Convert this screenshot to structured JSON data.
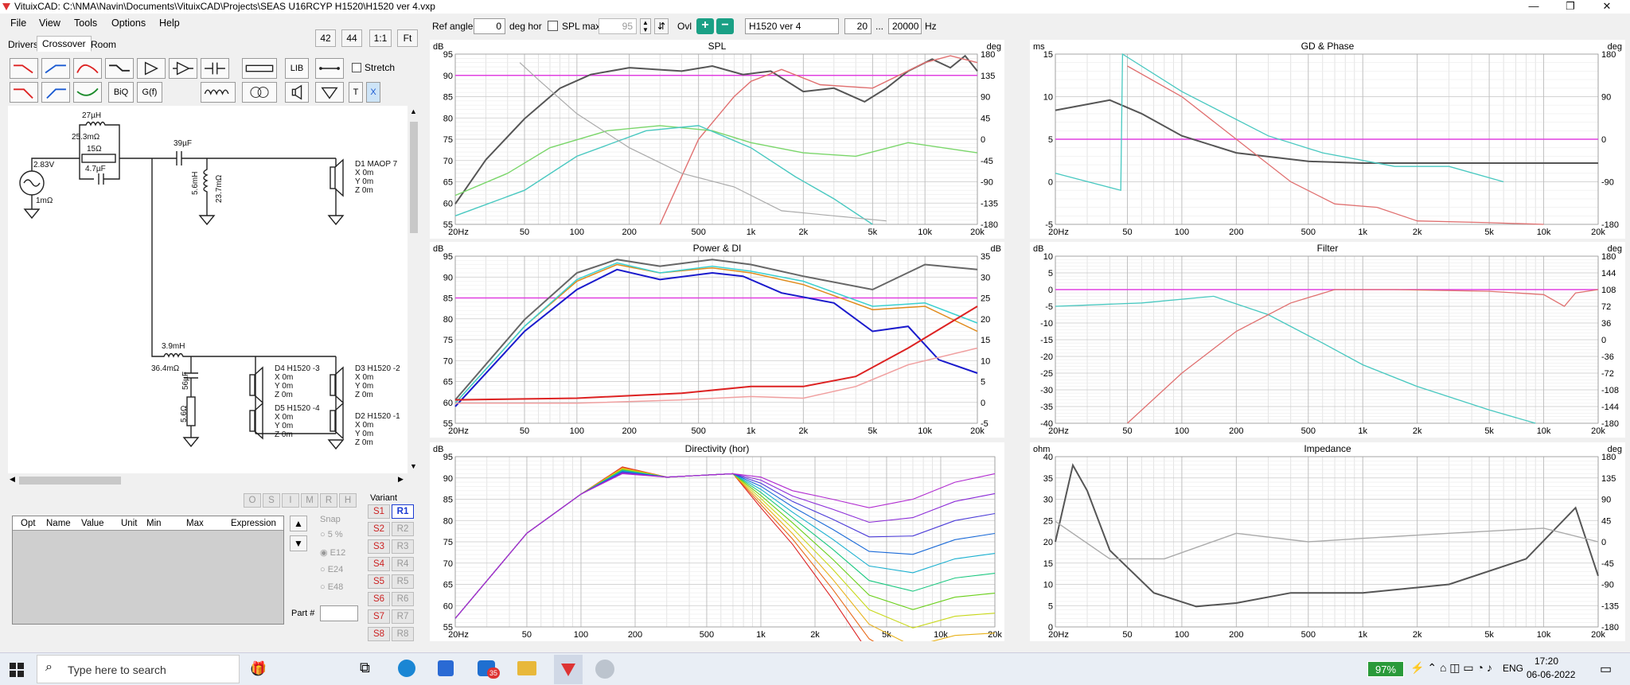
{
  "window": {
    "title": "VituixCAD: C:\\NMA\\Navin\\Documents\\VituixCAD\\Projects\\SEAS U16RCYP H1520\\H1520 ver 4.vxp",
    "controls": [
      "—",
      "❐",
      "✕"
    ]
  },
  "menu": [
    "File",
    "View",
    "Tools",
    "Options",
    "Help"
  ],
  "tabs": [
    "Drivers",
    "Crossover",
    "Room"
  ],
  "zoom_buttons": [
    "42",
    "44",
    "1:1",
    "Ft"
  ],
  "tools": {
    "lib": "LIB",
    "biq": "BiQ",
    "gf": "G(f)",
    "t": "T",
    "x": "X",
    "stretch": "Stretch"
  },
  "topbar": {
    "ref_angle_label": "Ref angle",
    "ref_angle_value": "0",
    "deg_hor": "deg hor",
    "spl_max_label": "SPL max",
    "spl_max_value": "95",
    "ovl_label": "Ovl",
    "overlay_name": "H1520 ver 4",
    "freq_from": "20",
    "freq_sep": "...",
    "freq_to": "20000",
    "hz": "Hz"
  },
  "schematic": {
    "labels": {
      "l1": "27µH",
      "r_l1": "25.3mΩ",
      "r1": "15Ω",
      "c1": "4.7µF",
      "src_v": "2.83V",
      "src_r": "1mΩ",
      "c2": "39µF",
      "l2": "5.6mH",
      "r_l2": "23.7mΩ",
      "d1": "D1 MAOP 7",
      "d1x": "X 0m",
      "d1y": "Y 0m",
      "d1z": "Z 0m",
      "l3": "3.9mH",
      "r_l3": "36.4mΩ",
      "c3": "56µF",
      "r3": "5.6Ω",
      "d4": "D4 H1520 -3",
      "d4x": "X 0m",
      "d4y": "Y 0m",
      "d4z": "Z 0m",
      "d3": "D3 H1520 -2",
      "d3x": "X 0m",
      "d3y": "Y 0m",
      "d3z": "Z 0m",
      "d5": "D5 H1520 -4",
      "d5x": "X 0m",
      "d5y": "Y 0m",
      "d5z": "Z 0m",
      "d2": "D2 H1520 -1",
      "d2x": "X 0m",
      "d2y": "Y 0m",
      "d2z": "Z 0m"
    }
  },
  "optimizer": {
    "mini_buttons": [
      "O",
      "S",
      "I",
      "M",
      "R",
      "H"
    ],
    "columns": [
      "Opt",
      "Name",
      "Value",
      "Unit",
      "Min",
      "Max",
      "Expression"
    ],
    "snap_label": "Snap",
    "snap_options": [
      "5 %",
      "E12",
      "E24",
      "E48"
    ],
    "snap_selected": "E12",
    "part_label": "Part #"
  },
  "variant": {
    "label": "Variant",
    "s": [
      "S1",
      "S2",
      "S3",
      "S4",
      "S5",
      "S6",
      "S7",
      "S8"
    ],
    "r": [
      "R1",
      "R2",
      "R3",
      "R4",
      "R5",
      "R6",
      "R7",
      "R8"
    ],
    "selected": "R1"
  },
  "x_ticks": [
    "20Hz",
    "50",
    "100",
    "200",
    "500",
    "1k",
    "2k",
    "5k",
    "10k",
    "20k"
  ],
  "panels": {
    "spl": {
      "title": "SPL",
      "unit_l": "dB",
      "unit_r": "deg",
      "yl": [
        "95",
        "90",
        "85",
        "80",
        "75",
        "70",
        "65",
        "60",
        "55"
      ],
      "yr": [
        "180",
        "135",
        "90",
        "45",
        "0",
        "-45",
        "-90",
        "-135",
        "-180"
      ]
    },
    "gd": {
      "title": "GD & Phase",
      "unit_l": "ms",
      "unit_r": "deg",
      "yl": [
        "15",
        "10",
        "5",
        "0",
        "-5"
      ],
      "yr": [
        "180",
        "90",
        "0",
        "-90",
        "-180"
      ]
    },
    "power": {
      "title": "Power & DI",
      "unit_l": "dB",
      "unit_r": "dB",
      "yl": [
        "95",
        "90",
        "85",
        "80",
        "75",
        "70",
        "65",
        "60",
        "55"
      ],
      "yr": [
        "35",
        "30",
        "25",
        "20",
        "15",
        "10",
        "5",
        "0",
        "-5"
      ]
    },
    "filter": {
      "title": "Filter",
      "unit_l": "dB",
      "unit_r": "deg",
      "yl": [
        "10",
        "5",
        "0",
        "-5",
        "-10",
        "-15",
        "-20",
        "-25",
        "-30",
        "-35",
        "-40"
      ],
      "yr": [
        "180",
        "144",
        "108",
        "72",
        "36",
        "0",
        "-36",
        "-72",
        "-108",
        "-144",
        "-180"
      ]
    },
    "dir": {
      "title": "Directivity (hor)",
      "unit_l": "dB",
      "unit_r": "",
      "yl": [
        "95",
        "90",
        "85",
        "80",
        "75",
        "70",
        "65",
        "60",
        "55"
      ],
      "yr": []
    },
    "imp": {
      "title": "Impedance",
      "unit_l": "ohm",
      "unit_r": "deg",
      "yl": [
        "40",
        "35",
        "30",
        "25",
        "20",
        "15",
        "10",
        "5",
        "0"
      ],
      "yr": [
        "180",
        "135",
        "90",
        "45",
        "0",
        "-45",
        "-90",
        "-135",
        "-180"
      ]
    }
  },
  "colors": {
    "accent_red": "#d22",
    "magenta": "#e040e0",
    "cyan": "#3cc8c8",
    "blue": "#1a1acc",
    "grid": "#d8d8d8"
  },
  "taskbar": {
    "search_placeholder": "Type here to search",
    "battery": "97%",
    "lang": "ENG",
    "time": "17:20",
    "date": "06-06-2022",
    "badge": "35"
  }
}
